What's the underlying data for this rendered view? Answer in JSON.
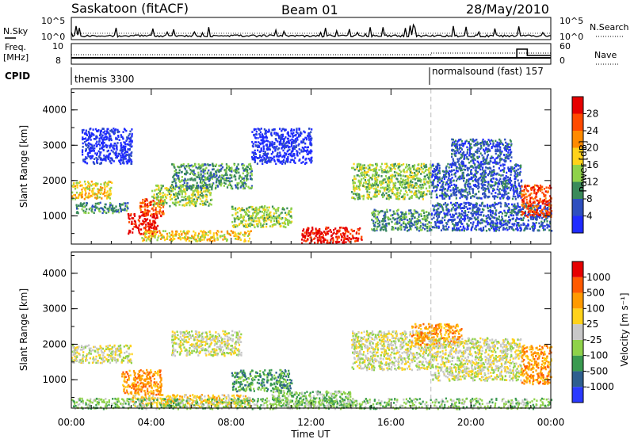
{
  "header": {
    "station": "Saskatoon (fitACF)",
    "beam": "Beam 01",
    "date": "28/May/2010"
  },
  "strips": {
    "nsky_label": "N.Sky",
    "nsky_ticks": [
      "10^5",
      "10^0"
    ],
    "nsearch_label": "N.Search",
    "nsearch_ticks": [
      "10^5",
      "10^0"
    ],
    "freq_label_line1": "Freq.",
    "freq_label_line2": "[MHz]",
    "freq_ticks": [
      "10",
      "8"
    ],
    "nave_label": "Nave",
    "nave_ticks": [
      "60",
      "0"
    ],
    "cpid_label": "CPID",
    "cpid_modes": [
      {
        "name": "themis 3300",
        "start_hour": 0
      },
      {
        "name": "normalsound (fast) 157",
        "start_hour": 18
      }
    ]
  },
  "chart_data": [
    {
      "type": "heatmap",
      "panel": "power",
      "xlabel": "",
      "ylabel": "Slant Range [km]",
      "x_range_hours": [
        0,
        24
      ],
      "ylim": [
        200,
        4600
      ],
      "y_ticks": [
        1000,
        2000,
        3000,
        4000
      ],
      "colorbar": {
        "label": "Power [dB]",
        "ticks": [
          "4",
          "8",
          "12",
          "16",
          "20",
          "24",
          "28"
        ],
        "colors": [
          "#1f2bff",
          "#2e4fbf",
          "#3a8a5a",
          "#8fd24a",
          "#ffd21a",
          "#ff8a00",
          "#ff4a00",
          "#e60000"
        ]
      },
      "regions": [
        {
          "t0": 0.0,
          "t1": 2.0,
          "r0": 1500,
          "r1": 2000,
          "level": 4
        },
        {
          "t0": 0.2,
          "t1": 2.8,
          "r0": 1100,
          "r1": 1400,
          "level": 2
        },
        {
          "t0": 2.8,
          "t1": 4.3,
          "r0": 500,
          "r1": 1100,
          "level": 7
        },
        {
          "t0": 3.4,
          "t1": 4.6,
          "r0": 1000,
          "r1": 1500,
          "level": 6
        },
        {
          "t0": 4.0,
          "t1": 7.0,
          "r0": 1300,
          "r1": 1900,
          "level": 3
        },
        {
          "t0": 3.5,
          "t1": 9.0,
          "r0": 300,
          "r1": 600,
          "level": 4
        },
        {
          "t0": 5.0,
          "t1": 9.0,
          "r0": 1800,
          "r1": 2500,
          "level": 2
        },
        {
          "t0": 8.0,
          "t1": 11.0,
          "r0": 700,
          "r1": 1300,
          "level": 3
        },
        {
          "t0": 11.5,
          "t1": 14.5,
          "r0": 250,
          "r1": 700,
          "level": 7
        },
        {
          "t0": 14.0,
          "t1": 18.0,
          "r0": 1500,
          "r1": 2500,
          "level": 3
        },
        {
          "t0": 15.0,
          "t1": 18.0,
          "r0": 600,
          "r1": 1200,
          "level": 2
        },
        {
          "t0": 18.0,
          "t1": 22.5,
          "r0": 1500,
          "r1": 2500,
          "level": 1
        },
        {
          "t0": 19.0,
          "t1": 22.0,
          "r0": 2500,
          "r1": 3200,
          "level": 1
        },
        {
          "t0": 18.0,
          "t1": 24.0,
          "r0": 600,
          "r1": 1400,
          "level": 1
        },
        {
          "t0": 22.5,
          "t1": 24.0,
          "r0": 1000,
          "r1": 1900,
          "level": 6
        },
        {
          "t0": 0.5,
          "t1": 3.0,
          "r0": 2500,
          "r1": 3500,
          "level": 0
        },
        {
          "t0": 9.0,
          "t1": 12.0,
          "r0": 2500,
          "r1": 3500,
          "level": 0
        }
      ]
    },
    {
      "type": "heatmap",
      "panel": "velocity",
      "xlabel": "Time UT",
      "ylabel": "Slant Range [km]",
      "x_range_hours": [
        0,
        24
      ],
      "x_ticks": [
        "00:00",
        "04:00",
        "08:00",
        "12:00",
        "16:00",
        "20:00",
        "00:00"
      ],
      "ylim": [
        200,
        4600
      ],
      "y_ticks": [
        1000,
        2000,
        3000,
        4000
      ],
      "colorbar": {
        "label": "Velocity [m s⁻¹]",
        "ticks": [
          "1000",
          "500",
          "100",
          "25",
          "-25",
          "-100",
          "-500",
          "-1000"
        ],
        "colors": [
          "#2a3aff",
          "#2e5f8f",
          "#3a9a50",
          "#8fd24a",
          "#c8c8c8",
          "#ffd21a",
          "#ff9a00",
          "#ff5a00",
          "#e60000"
        ]
      },
      "regions": [
        {
          "t0": 0.0,
          "t1": 3.0,
          "r0": 1500,
          "r1": 2000,
          "level": 4
        },
        {
          "t0": 2.5,
          "t1": 4.5,
          "r0": 600,
          "r1": 1300,
          "level": 6
        },
        {
          "t0": 3.0,
          "t1": 9.0,
          "r0": 250,
          "r1": 600,
          "level": 5
        },
        {
          "t0": 5.0,
          "t1": 8.5,
          "r0": 1700,
          "r1": 2400,
          "level": 4
        },
        {
          "t0": 8.0,
          "t1": 11.0,
          "r0": 700,
          "r1": 1300,
          "level": 2
        },
        {
          "t0": 10.0,
          "t1": 14.0,
          "r0": 250,
          "r1": 700,
          "level": 3
        },
        {
          "t0": 14.0,
          "t1": 18.0,
          "r0": 1300,
          "r1": 2400,
          "level": 4
        },
        {
          "t0": 17.0,
          "t1": 19.5,
          "r0": 2000,
          "r1": 2600,
          "level": 6
        },
        {
          "t0": 18.0,
          "t1": 22.5,
          "r0": 1000,
          "r1": 2200,
          "level": 4
        },
        {
          "t0": 22.5,
          "t1": 24.0,
          "r0": 900,
          "r1": 2000,
          "level": 6
        },
        {
          "t0": 0.0,
          "t1": 24.0,
          "r0": 200,
          "r1": 500,
          "level": 3
        }
      ]
    }
  ]
}
